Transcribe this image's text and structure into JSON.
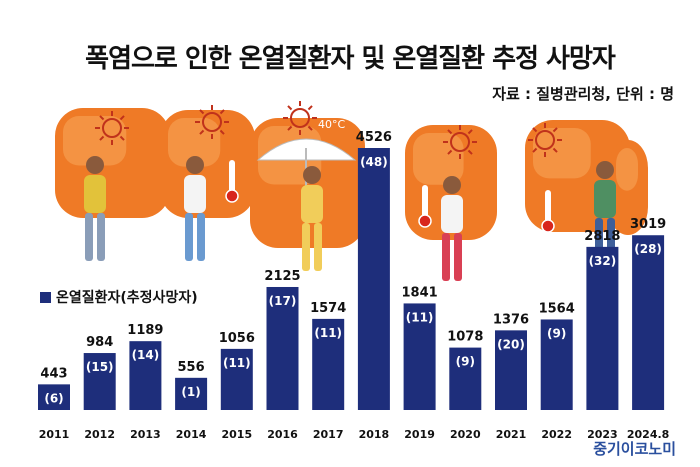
{
  "title": "폭염으로 인한 온열질환자 및 온열질환 추정 사망자",
  "source_note": "자료 : 질병관리청, 단위 : 명",
  "brand": "중기이코노미",
  "illustration_text": "40°C",
  "colors": {
    "bar": "#1e2e7b",
    "orange": "#ef7a26",
    "orange_light": "#f7a456",
    "text": "#111111"
  },
  "chart_data": {
    "type": "bar",
    "categories": [
      "2011",
      "2012",
      "2013",
      "2014",
      "2015",
      "2016",
      "2017",
      "2018",
      "2019",
      "2020",
      "2021",
      "2022",
      "2023",
      "2024.8"
    ],
    "series": [
      {
        "name": "온열질환자(추정사망자)",
        "values": [
          443,
          984,
          1189,
          556,
          1056,
          2125,
          1574,
          4526,
          1841,
          1078,
          1376,
          1564,
          2818,
          3019
        ]
      }
    ],
    "deaths": [
      6,
      15,
      14,
      1,
      11,
      17,
      11,
      48,
      11,
      9,
      20,
      9,
      32,
      28
    ],
    "death_labels": [
      "(6)",
      "(15)",
      "(14)",
      "(1)",
      "(11)",
      "(17)",
      "(11)",
      "(48)",
      "(11)",
      "(9)",
      "(20)",
      "(9)",
      "(32)",
      "(28)"
    ],
    "legend": "온열질환자(추정사망자)",
    "legend_position": "left-middle",
    "ylim": [
      0,
      4526
    ],
    "grid": false
  }
}
